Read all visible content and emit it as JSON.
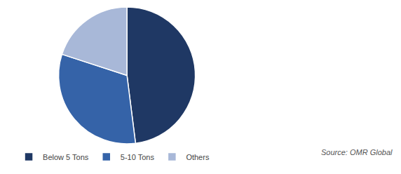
{
  "chart_data": {
    "type": "pie",
    "categories": [
      "Below 5 Tons",
      "5-10 Tons",
      "Others"
    ],
    "values": [
      48,
      32,
      20
    ],
    "colors": [
      "#1f3864",
      "#3563a8",
      "#a8b8d8"
    ],
    "legend": "bottom",
    "annotations": [
      "Source: OMR Global"
    ]
  }
}
